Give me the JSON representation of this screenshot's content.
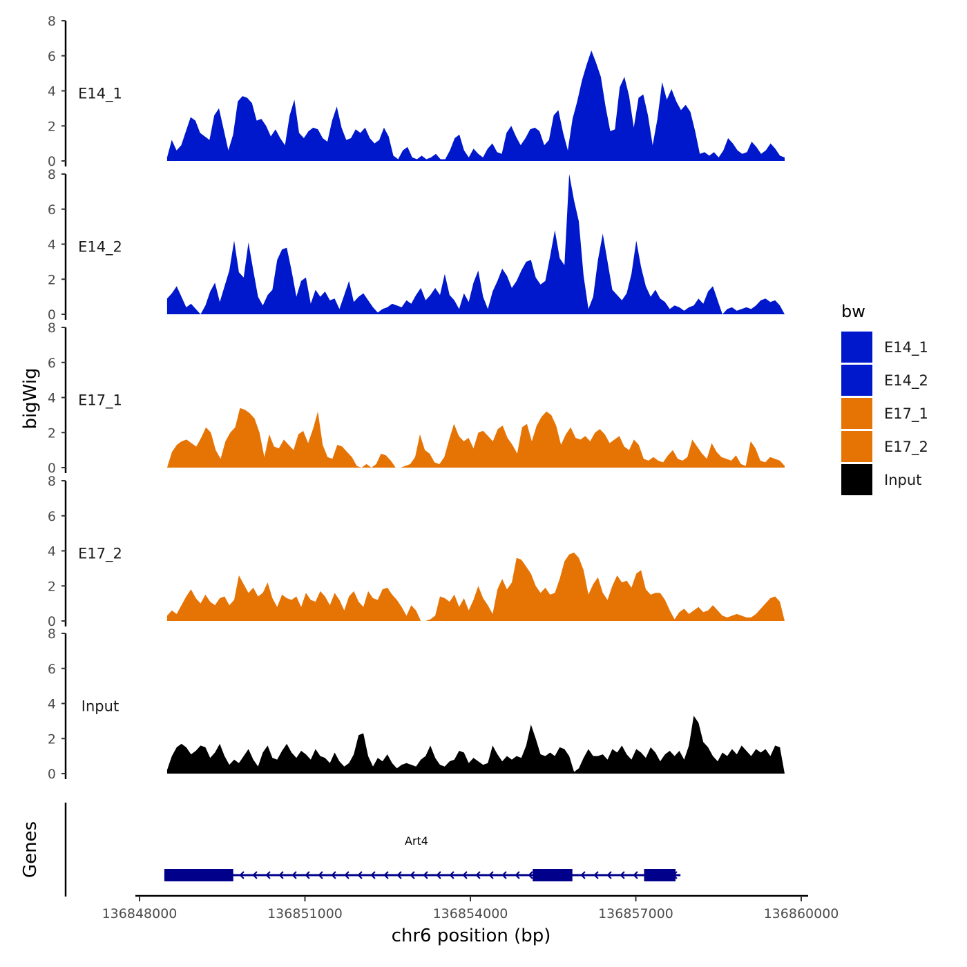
{
  "chart_data": {
    "type": "area",
    "ylabel": "bigWig",
    "xlabel": "chr6 position (bp)",
    "xlim": [
      136847950,
      136859950
    ],
    "ylim": [
      0,
      8
    ],
    "yticks": [
      "0",
      "2",
      "4",
      "6",
      "8"
    ],
    "xticks": [
      {
        "value": 136848000,
        "label": "136848000"
      },
      {
        "value": 136851000,
        "label": "136851000"
      },
      {
        "value": 136854000,
        "label": "136854000"
      },
      {
        "value": 136857000,
        "label": "136857000"
      },
      {
        "value": 136860000,
        "label": "136860000"
      }
    ],
    "data_start": 136848500,
    "data_end": 136859700,
    "legend": {
      "title": "bw",
      "entries": [
        {
          "label": "E14_1",
          "color": "#0018CC"
        },
        {
          "label": "E14_2",
          "color": "#0018CC"
        },
        {
          "label": "E17_1",
          "color": "#E67405"
        },
        {
          "label": "E17_2",
          "color": "#E67405"
        },
        {
          "label": "Input",
          "color": "#000000"
        }
      ]
    },
    "series": [
      {
        "name": "E14_1",
        "color": "#0018CC",
        "values": [
          0.2,
          1.2,
          0.6,
          0.9,
          1.7,
          2.5,
          2.3,
          1.6,
          1.4,
          1.2,
          2.6,
          3.0,
          1.8,
          0.6,
          1.5,
          3.4,
          3.7,
          3.6,
          3.3,
          2.3,
          2.4,
          2.0,
          1.4,
          1.8,
          1.3,
          0.9,
          2.6,
          3.5,
          1.6,
          1.3,
          1.7,
          1.9,
          1.8,
          1.3,
          1.1,
          2.3,
          3.1,
          1.9,
          1.2,
          1.3,
          1.8,
          1.6,
          1.9,
          1.3,
          1.0,
          1.2,
          1.9,
          1.4,
          0.3,
          0.1,
          0.6,
          0.8,
          0.2,
          0.1,
          0.3,
          0.1,
          0.2,
          0.4,
          0.1,
          0.1,
          0.6,
          1.3,
          1.5,
          0.6,
          0.2,
          0.7,
          0.4,
          0.2,
          0.7,
          1.0,
          0.5,
          0.4,
          1.6,
          2.0,
          1.4,
          0.9,
          1.3,
          1.8,
          1.9,
          1.7,
          0.9,
          1.2,
          2.6,
          2.9,
          1.6,
          0.6,
          2.4,
          3.4,
          4.6,
          5.5,
          6.3,
          5.6,
          4.8,
          3.1,
          1.7,
          1.8,
          4.2,
          4.8,
          3.7,
          1.9,
          3.6,
          3.8,
          2.6,
          0.9,
          2.4,
          4.5,
          3.5,
          4.1,
          3.4,
          2.9,
          3.2,
          2.8,
          1.7,
          0.4,
          0.5,
          0.3,
          0.5,
          0.2,
          0.6,
          1.3,
          1.0,
          0.6,
          0.4,
          0.5,
          1.1,
          0.8,
          0.4,
          0.6,
          1.0,
          0.7,
          0.3,
          0.2
        ]
      },
      {
        "name": "E14_2",
        "color": "#0018CC",
        "values": [
          0.9,
          1.2,
          1.6,
          1.0,
          0.4,
          0.6,
          0.3,
          0.0,
          0.5,
          1.3,
          1.8,
          0.7,
          1.6,
          2.5,
          4.2,
          2.4,
          2.1,
          4.1,
          2.5,
          1.0,
          0.5,
          1.1,
          1.4,
          3.1,
          3.7,
          3.8,
          2.5,
          1.0,
          1.9,
          2.1,
          0.6,
          1.4,
          1.0,
          1.3,
          0.8,
          0.9,
          0.3,
          1.1,
          1.9,
          0.7,
          1.0,
          1.2,
          0.8,
          0.4,
          0.1,
          0.3,
          0.4,
          0.6,
          0.5,
          0.4,
          0.8,
          0.6,
          1.1,
          1.5,
          0.8,
          1.1,
          1.5,
          1.1,
          2.3,
          1.1,
          0.8,
          0.3,
          1.2,
          0.7,
          1.8,
          2.5,
          1.0,
          0.3,
          1.3,
          1.9,
          2.6,
          2.2,
          1.5,
          1.9,
          2.5,
          3.0,
          3.1,
          2.1,
          1.7,
          1.9,
          3.3,
          4.8,
          3.2,
          2.8,
          8.0,
          6.5,
          5.3,
          2.2,
          0.3,
          1.0,
          3.1,
          4.6,
          3.0,
          1.4,
          1.1,
          0.8,
          1.2,
          2.3,
          4.2,
          2.7,
          1.6,
          1.0,
          1.4,
          0.9,
          0.7,
          0.3,
          0.5,
          0.4,
          0.2,
          0.4,
          0.5,
          0.9,
          0.6,
          1.3,
          1.6,
          0.8,
          0.0,
          0.3,
          0.4,
          0.2,
          0.3,
          0.4,
          0.3,
          0.5,
          0.8,
          0.9,
          0.7,
          0.8,
          0.5,
          0.0
        ]
      },
      {
        "name": "E17_1",
        "color": "#E67405",
        "values": [
          0.0,
          0.9,
          1.3,
          1.5,
          1.6,
          1.4,
          1.2,
          1.7,
          2.3,
          2.0,
          1.0,
          0.5,
          1.5,
          2.0,
          2.3,
          3.4,
          3.3,
          3.1,
          2.8,
          2.0,
          0.6,
          1.9,
          1.2,
          1.1,
          1.6,
          1.3,
          1.0,
          1.9,
          2.1,
          1.4,
          2.2,
          3.2,
          1.3,
          0.6,
          0.5,
          1.3,
          1.2,
          0.9,
          0.6,
          0.1,
          0.0,
          0.2,
          0.0,
          0.2,
          0.8,
          0.7,
          0.4,
          0.0,
          0.0,
          0.1,
          0.2,
          0.6,
          1.9,
          1.0,
          0.8,
          0.3,
          0.2,
          0.6,
          1.6,
          2.5,
          1.8,
          1.5,
          1.7,
          1.1,
          2.0,
          2.1,
          1.8,
          1.5,
          2.2,
          2.4,
          1.7,
          1.3,
          0.8,
          2.3,
          2.5,
          1.5,
          2.4,
          2.9,
          3.2,
          3.0,
          2.4,
          1.3,
          1.9,
          2.3,
          1.7,
          1.6,
          1.8,
          1.5,
          2.0,
          2.2,
          1.9,
          1.4,
          1.6,
          1.8,
          1.2,
          1.0,
          1.6,
          1.3,
          0.5,
          0.4,
          0.6,
          0.4,
          0.3,
          0.7,
          1.0,
          0.5,
          0.4,
          0.6,
          1.6,
          1.2,
          0.8,
          0.5,
          1.4,
          0.9,
          0.6,
          0.5,
          0.4,
          0.7,
          0.2,
          0.1,
          1.5,
          1.1,
          0.4,
          0.3,
          0.6,
          0.5,
          0.4,
          0.1
        ]
      },
      {
        "name": "E17_2",
        "color": "#E67405",
        "values": [
          0.3,
          0.6,
          0.4,
          0.9,
          1.4,
          1.8,
          1.3,
          1.0,
          1.5,
          1.1,
          0.9,
          1.3,
          1.4,
          0.9,
          1.2,
          2.6,
          2.1,
          1.6,
          1.9,
          1.4,
          1.6,
          2.2,
          1.3,
          0.8,
          1.5,
          1.3,
          1.2,
          1.4,
          0.8,
          1.6,
          1.2,
          1.1,
          1.7,
          1.4,
          0.9,
          1.6,
          1.2,
          0.6,
          1.4,
          1.7,
          1.1,
          0.8,
          1.7,
          1.3,
          1.2,
          1.8,
          1.9,
          1.5,
          1.2,
          0.8,
          0.3,
          0.9,
          0.6,
          0.0,
          0.0,
          0.1,
          0.3,
          1.4,
          1.3,
          1.1,
          1.5,
          0.8,
          1.3,
          0.6,
          1.2,
          2.0,
          1.3,
          0.9,
          0.4,
          1.8,
          2.4,
          1.8,
          2.2,
          3.6,
          3.5,
          3.1,
          2.7,
          2.0,
          1.6,
          1.9,
          1.5,
          1.6,
          2.4,
          3.4,
          3.8,
          3.9,
          3.6,
          2.9,
          1.5,
          2.1,
          2.5,
          1.6,
          1.2,
          2.0,
          2.6,
          2.2,
          2.3,
          1.9,
          2.7,
          2.9,
          1.8,
          1.5,
          1.6,
          1.6,
          1.2,
          0.6,
          0.1,
          0.5,
          0.7,
          0.4,
          0.6,
          0.8,
          0.5,
          0.6,
          0.9,
          0.6,
          0.3,
          0.2,
          0.3,
          0.4,
          0.3,
          0.2,
          0.2,
          0.4,
          0.7,
          1.0,
          1.3,
          1.4,
          1.1,
          0.0
        ]
      },
      {
        "name": "Input",
        "color": "#000000",
        "values": [
          0.2,
          1.0,
          1.5,
          1.7,
          1.5,
          1.1,
          1.3,
          1.6,
          1.5,
          0.9,
          1.2,
          1.7,
          1.0,
          0.5,
          0.8,
          0.6,
          1.0,
          1.4,
          0.8,
          0.4,
          1.2,
          1.6,
          0.9,
          0.8,
          1.3,
          1.7,
          1.2,
          0.9,
          1.3,
          1.1,
          0.8,
          1.4,
          1.0,
          0.9,
          0.6,
          1.2,
          0.7,
          0.4,
          0.6,
          1.1,
          2.2,
          2.3,
          1.0,
          0.4,
          0.9,
          0.7,
          1.1,
          0.6,
          0.3,
          0.5,
          0.6,
          0.5,
          0.4,
          0.8,
          1.0,
          1.6,
          0.9,
          0.5,
          0.4,
          0.7,
          0.8,
          1.3,
          1.2,
          0.6,
          0.9,
          0.7,
          0.5,
          0.6,
          1.6,
          1.1,
          0.7,
          1.0,
          0.8,
          1.0,
          0.9,
          1.6,
          2.8,
          2.0,
          1.1,
          1.0,
          1.2,
          1.0,
          1.5,
          1.4,
          1.0,
          0.1,
          0.3,
          0.9,
          1.4,
          1.0,
          1.0,
          1.1,
          0.8,
          1.4,
          1.2,
          1.6,
          1.1,
          0.8,
          1.4,
          1.2,
          0.9,
          1.5,
          1.2,
          0.7,
          1.1,
          1.3,
          1.0,
          1.3,
          0.8,
          1.6,
          3.3,
          2.9,
          1.8,
          1.5,
          1.0,
          0.7,
          1.2,
          1.0,
          1.4,
          1.1,
          1.6,
          1.3,
          1.0,
          1.4,
          1.2,
          1.4,
          1.0,
          1.6,
          1.5,
          0.0
        ]
      }
    ],
    "genes": {
      "track_label": "Genes",
      "name": "Art4",
      "start": 136848450,
      "end": 136857760,
      "strand": "-",
      "exons": [
        [
          136848450,
          136849700
        ],
        [
          136855130,
          136855850
        ],
        [
          136857150,
          136857720
        ]
      ]
    }
  }
}
